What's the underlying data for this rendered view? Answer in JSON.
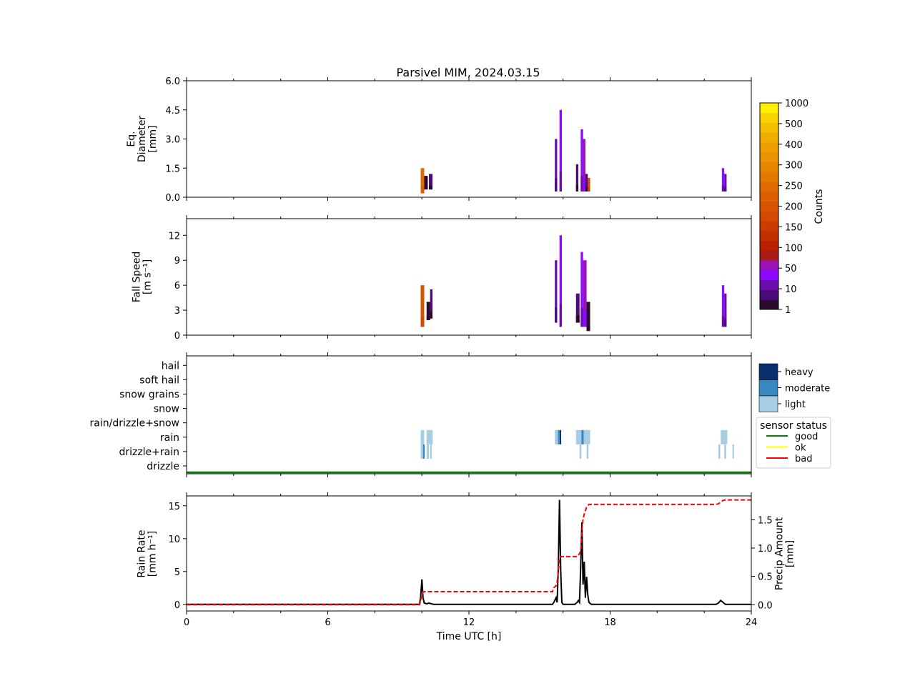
{
  "figure": {
    "title": "Parsivel MIM, 2024.03.15",
    "xlabel": "Time UTC [h]"
  },
  "colors": {
    "counts_levels": [
      "#2a0a2e",
      "#4b0a7a",
      "#6a0dad",
      "#8b0aff",
      "#9b12b8",
      "#aa1a1a",
      "#b82000",
      "#c23000",
      "#cc3c00",
      "#d44800",
      "#d85300",
      "#dc5f00",
      "#e06b00",
      "#e47800",
      "#e88500",
      "#eb9200",
      "#ee9f00",
      "#f0ad00",
      "#f3bd00",
      "#f7d300",
      "#fff000"
    ],
    "intensity": {
      "light": "#a6cde2",
      "moderate": "#3787c0",
      "heavy": "#08306b"
    },
    "rain_rate": "#000000",
    "precip_amount": "#ff0000",
    "status": {
      "good": "#008000",
      "ok": "#ffff00",
      "bad": "#ff0000"
    }
  },
  "colorbar": {
    "label": "Counts",
    "ticks": [
      "1",
      "10",
      "50",
      "100",
      "150",
      "200",
      "250",
      "300",
      "400",
      "500",
      "1000"
    ]
  },
  "intensity_legend": {
    "items": [
      {
        "key": "heavy",
        "label": "heavy"
      },
      {
        "key": "moderate",
        "label": "moderate"
      },
      {
        "key": "light",
        "label": "light"
      }
    ]
  },
  "status_legend": {
    "title": "sensor status",
    "items": [
      {
        "key": "good",
        "label": "good"
      },
      {
        "key": "ok",
        "label": "ok"
      },
      {
        "key": "bad",
        "label": "bad"
      }
    ]
  },
  "chart_data": [
    {
      "type": "heatmap",
      "name": "diameter",
      "ylabel_lines": [
        "Eq.",
        "Diameter",
        "[mm]"
      ],
      "xlim": [
        0,
        24
      ],
      "ylim": [
        0,
        6
      ],
      "y_ticks": [
        "0.0",
        "1.5",
        "3.0",
        "4.5",
        "6.0"
      ],
      "y_tick_values": [
        0,
        1.5,
        3,
        4.5,
        6
      ],
      "columns": [
        {
          "x0": 9.95,
          "x1": 10.1,
          "y0": 0.2,
          "y1": 1.5,
          "level": 12
        },
        {
          "x0": 10.1,
          "x1": 10.25,
          "y0": 0.4,
          "y1": 1.1,
          "level": 0
        },
        {
          "x0": 10.3,
          "x1": 10.45,
          "y0": 0.4,
          "y1": 1.2,
          "level": 1
        },
        {
          "x0": 15.65,
          "x1": 15.75,
          "y0": 0.3,
          "y1": 3.0,
          "level": 2
        },
        {
          "x0": 15.85,
          "x1": 15.95,
          "y0": 0.3,
          "y1": 4.5,
          "level": 3
        },
        {
          "x0": 16.55,
          "x1": 16.65,
          "y0": 0.3,
          "y1": 1.7,
          "level": 1
        },
        {
          "x0": 16.75,
          "x1": 16.85,
          "y0": 0.3,
          "y1": 3.5,
          "level": 3
        },
        {
          "x0": 16.85,
          "x1": 16.95,
          "y0": 0.3,
          "y1": 3.0,
          "level": 4
        },
        {
          "x0": 16.95,
          "x1": 17.05,
          "y0": 0.3,
          "y1": 1.2,
          "level": 1
        },
        {
          "x0": 17.05,
          "x1": 17.15,
          "y0": 0.3,
          "y1": 1.0,
          "level": 9
        },
        {
          "x0": 22.75,
          "x1": 22.85,
          "y0": 0.3,
          "y1": 1.5,
          "level": 3
        },
        {
          "x0": 22.85,
          "x1": 22.95,
          "y0": 0.3,
          "y1": 1.2,
          "level": 2
        }
      ]
    },
    {
      "type": "heatmap",
      "name": "fall_speed",
      "ylabel_lines": [
        "Fall Speed",
        "[m s⁻¹]"
      ],
      "xlim": [
        0,
        24
      ],
      "ylim": [
        0,
        14
      ],
      "y_ticks": [
        "0",
        "3",
        "6",
        "9",
        "12"
      ],
      "y_tick_values": [
        0,
        3,
        6,
        9,
        12
      ],
      "columns": [
        {
          "x0": 9.95,
          "x1": 10.1,
          "y0": 1.0,
          "y1": 6.0,
          "level": 10
        },
        {
          "x0": 10.2,
          "x1": 10.35,
          "y0": 1.8,
          "y1": 4.0,
          "level": 0
        },
        {
          "x0": 10.35,
          "x1": 10.45,
          "y0": 2.0,
          "y1": 5.5,
          "level": 1
        },
        {
          "x0": 15.65,
          "x1": 15.75,
          "y0": 1.5,
          "y1": 9.0,
          "level": 2
        },
        {
          "x0": 15.85,
          "x1": 15.95,
          "y0": 1.0,
          "y1": 12.0,
          "level": 3
        },
        {
          "x0": 16.55,
          "x1": 16.7,
          "y0": 1.5,
          "y1": 5.0,
          "level": 1
        },
        {
          "x0": 16.75,
          "x1": 16.85,
          "y0": 1.0,
          "y1": 10.0,
          "level": 3
        },
        {
          "x0": 16.85,
          "x1": 17.0,
          "y0": 1.0,
          "y1": 9.0,
          "level": 4
        },
        {
          "x0": 17.0,
          "x1": 17.15,
          "y0": 0.5,
          "y1": 4.0,
          "level": 0
        },
        {
          "x0": 22.75,
          "x1": 22.85,
          "y0": 1.0,
          "y1": 6.0,
          "level": 3
        },
        {
          "x0": 22.85,
          "x1": 22.95,
          "y0": 1.0,
          "y1": 5.0,
          "level": 2
        }
      ]
    },
    {
      "type": "heatmap",
      "name": "precip_type",
      "categories": [
        "drizzle",
        "drizzle+rain",
        "rain",
        "rain/drizzle+snow",
        "snow",
        "snow grains",
        "soft hail",
        "hail"
      ],
      "xlim": [
        0,
        24
      ],
      "bars": [
        {
          "category": "rain",
          "x0": 9.95,
          "x1": 10.1,
          "intensity": "light"
        },
        {
          "category": "rain",
          "x0": 10.2,
          "x1": 10.4,
          "intensity": "light"
        },
        {
          "category": "rain",
          "x0": 10.4,
          "x1": 10.45,
          "intensity": "light"
        },
        {
          "category": "drizzle+rain",
          "x0": 9.95,
          "x1": 10.05,
          "intensity": "light"
        },
        {
          "category": "drizzle+rain",
          "x0": 10.05,
          "x1": 10.12,
          "intensity": "moderate"
        },
        {
          "category": "drizzle+rain",
          "x0": 10.2,
          "x1": 10.3,
          "intensity": "light"
        },
        {
          "category": "drizzle+rain",
          "x0": 10.35,
          "x1": 10.42,
          "intensity": "light"
        },
        {
          "category": "rain",
          "x0": 15.65,
          "x1": 15.78,
          "intensity": "light"
        },
        {
          "category": "rain",
          "x0": 15.78,
          "x1": 15.83,
          "intensity": "moderate"
        },
        {
          "category": "rain",
          "x0": 15.85,
          "x1": 15.92,
          "intensity": "heavy"
        },
        {
          "category": "rain",
          "x0": 16.55,
          "x1": 16.78,
          "intensity": "light"
        },
        {
          "category": "rain",
          "x0": 16.78,
          "x1": 16.88,
          "intensity": "moderate"
        },
        {
          "category": "rain",
          "x0": 16.88,
          "x1": 17.15,
          "intensity": "light"
        },
        {
          "category": "drizzle+rain",
          "x0": 16.7,
          "x1": 16.78,
          "intensity": "light"
        },
        {
          "category": "drizzle+rain",
          "x0": 17.0,
          "x1": 17.08,
          "intensity": "light"
        },
        {
          "category": "rain",
          "x0": 22.7,
          "x1": 22.98,
          "intensity": "light"
        },
        {
          "category": "drizzle+rain",
          "x0": 22.6,
          "x1": 22.68,
          "intensity": "light"
        },
        {
          "category": "drizzle+rain",
          "x0": 22.85,
          "x1": 22.93,
          "intensity": "light"
        },
        {
          "category": "drizzle+rain",
          "x0": 23.2,
          "x1": 23.26,
          "intensity": "light"
        }
      ],
      "status_line": {
        "value": "good",
        "x": [
          0,
          24
        ]
      }
    },
    {
      "type": "line",
      "name": "rain",
      "ylabel_lines": [
        "Rain Rate",
        "[mm h⁻¹]"
      ],
      "y2label_lines": [
        "Precip Amount",
        "[mm]"
      ],
      "xlim": [
        0,
        24
      ],
      "ylim": [
        -1,
        16.5
      ],
      "y2lim": [
        -0.11,
        1.92
      ],
      "y_ticks": [
        "0",
        "5",
        "10",
        "15"
      ],
      "y_tick_values": [
        0,
        5,
        10,
        15
      ],
      "y2_ticks": [
        "0.0",
        "0.5",
        "1.0",
        "1.5"
      ],
      "y2_tick_values": [
        0,
        0.5,
        1.0,
        1.5
      ],
      "x_ticks": [
        "0",
        "6",
        "12",
        "18",
        "24"
      ],
      "x_tick_values": [
        0,
        6,
        12,
        18,
        24
      ],
      "series": [
        {
          "axis": "left",
          "style": "solid",
          "x": [
            0,
            9.9,
            9.95,
            10.0,
            10.05,
            10.1,
            10.2,
            10.3,
            10.4,
            10.5,
            15.55,
            15.62,
            15.7,
            15.75,
            15.8,
            15.85,
            15.9,
            15.95,
            16.0,
            16.5,
            16.6,
            16.65,
            16.7,
            16.75,
            16.8,
            16.85,
            16.9,
            16.95,
            17.0,
            17.05,
            17.1,
            17.2,
            22.5,
            22.6,
            22.7,
            22.8,
            22.9,
            24
          ],
          "y": [
            0,
            0,
            1.2,
            3.8,
            1.0,
            0.2,
            0.1,
            0.2,
            0.1,
            0,
            0,
            0.4,
            1.0,
            0.3,
            6.0,
            15.9,
            5.0,
            0.3,
            0,
            0,
            0.3,
            0.6,
            0.3,
            6.0,
            12.5,
            3.0,
            6.5,
            1.0,
            4.2,
            1.5,
            0.3,
            0,
            0,
            0.2,
            0.6,
            0.3,
            0,
            0
          ]
        },
        {
          "axis": "right",
          "style": "dashed",
          "x": [
            0,
            9.9,
            9.95,
            10.0,
            10.05,
            10.1,
            15.55,
            15.6,
            15.7,
            15.75,
            15.8,
            15.85,
            15.9,
            16.6,
            16.7,
            16.75,
            16.8,
            16.85,
            16.9,
            17.0,
            17.1,
            22.5,
            22.6,
            22.7,
            22.8,
            22.9,
            24
          ],
          "y": [
            0,
            0,
            0.08,
            0.18,
            0.22,
            0.23,
            0.23,
            0.3,
            0.33,
            0.4,
            0.6,
            0.82,
            0.85,
            0.85,
            0.9,
            0.95,
            1.3,
            1.5,
            1.6,
            1.72,
            1.77,
            1.77,
            1.78,
            1.81,
            1.84,
            1.85,
            1.85
          ]
        }
      ]
    }
  ]
}
